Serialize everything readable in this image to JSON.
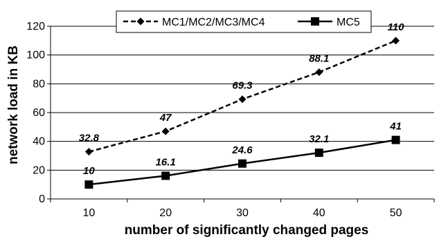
{
  "chart_data": {
    "type": "line",
    "x": [
      10,
      20,
      30,
      40,
      50
    ],
    "xlabel": "number of significantly changed pages",
    "ylabel": "network load in KB",
    "xlim": [
      5,
      55
    ],
    "ylim": [
      0,
      120
    ],
    "y_ticks": [
      0,
      20,
      40,
      60,
      80,
      100,
      120
    ],
    "x_ticks": [
      10,
      20,
      30,
      40,
      50
    ],
    "grid": "horizontal",
    "legend_position": "top",
    "series": [
      {
        "name": "MC1/MC2/MC3/MC4",
        "values": [
          32.8,
          47,
          69.3,
          88.1,
          110
        ],
        "labels": [
          "32.8",
          "47",
          "69.3",
          "88.1",
          "110"
        ],
        "line_style": "dashed",
        "marker": "diamond",
        "color": "#000000"
      },
      {
        "name": "MC5",
        "values": [
          10,
          16.1,
          24.6,
          32.1,
          41
        ],
        "labels": [
          "10",
          "16.1",
          "24.6",
          "32.1",
          "41"
        ],
        "line_style": "solid",
        "marker": "square",
        "color": "#000000"
      }
    ]
  }
}
